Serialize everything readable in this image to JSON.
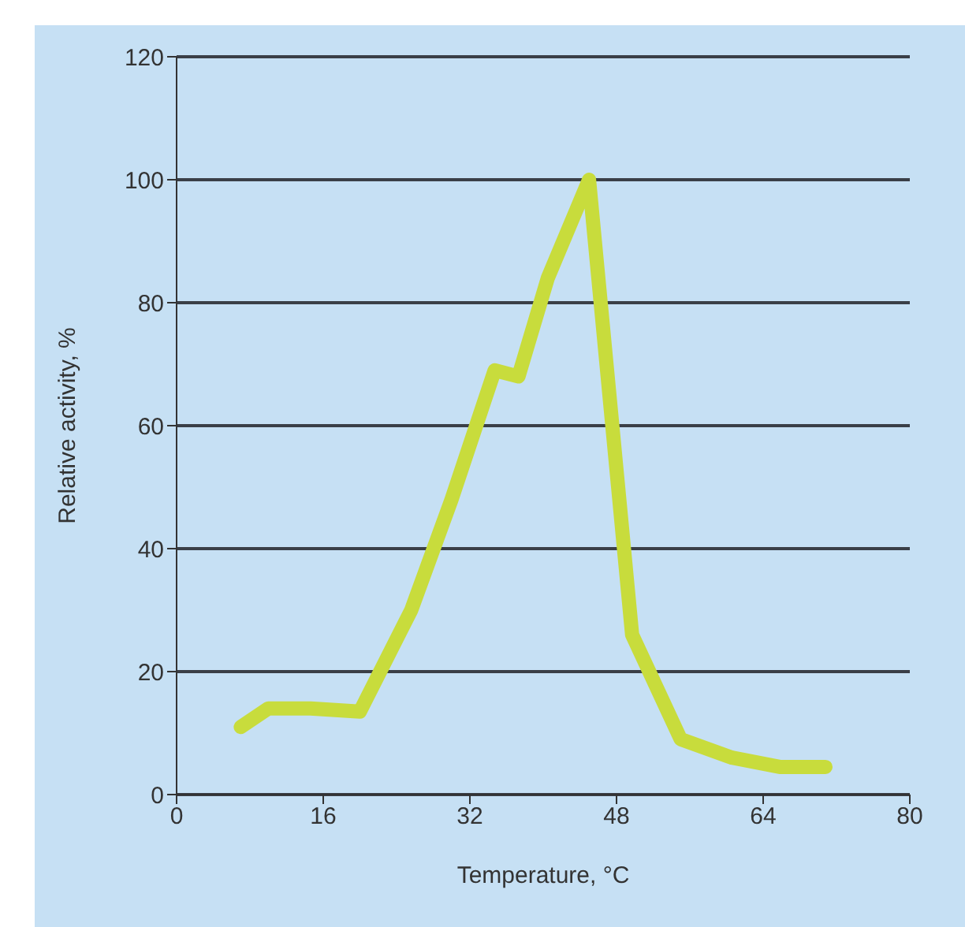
{
  "chart_data": {
    "type": "line",
    "xlabel": "Temperature, °C",
    "ylabel": "Relative activity, %",
    "x": [
      7,
      10,
      14.6,
      20,
      25.6,
      30,
      34.7,
      37.3,
      40.5,
      45,
      49.7,
      55,
      60.6,
      65.8,
      70.8
    ],
    "series": [
      {
        "color": "#c8dc3c",
        "values": [
          11,
          14,
          14,
          13.5,
          30,
          48,
          69,
          68,
          84,
          100,
          26,
          9,
          6,
          4.5,
          4.5
        ]
      }
    ],
    "xlim": [
      0,
      80
    ],
    "xticks": [
      0,
      16,
      32,
      48,
      64,
      80
    ],
    "ylim": [
      0,
      120
    ],
    "yticks": [
      0,
      20,
      40,
      60,
      80,
      100,
      120
    ],
    "grid": "y",
    "marker": "none",
    "line_style": "solid"
  }
}
